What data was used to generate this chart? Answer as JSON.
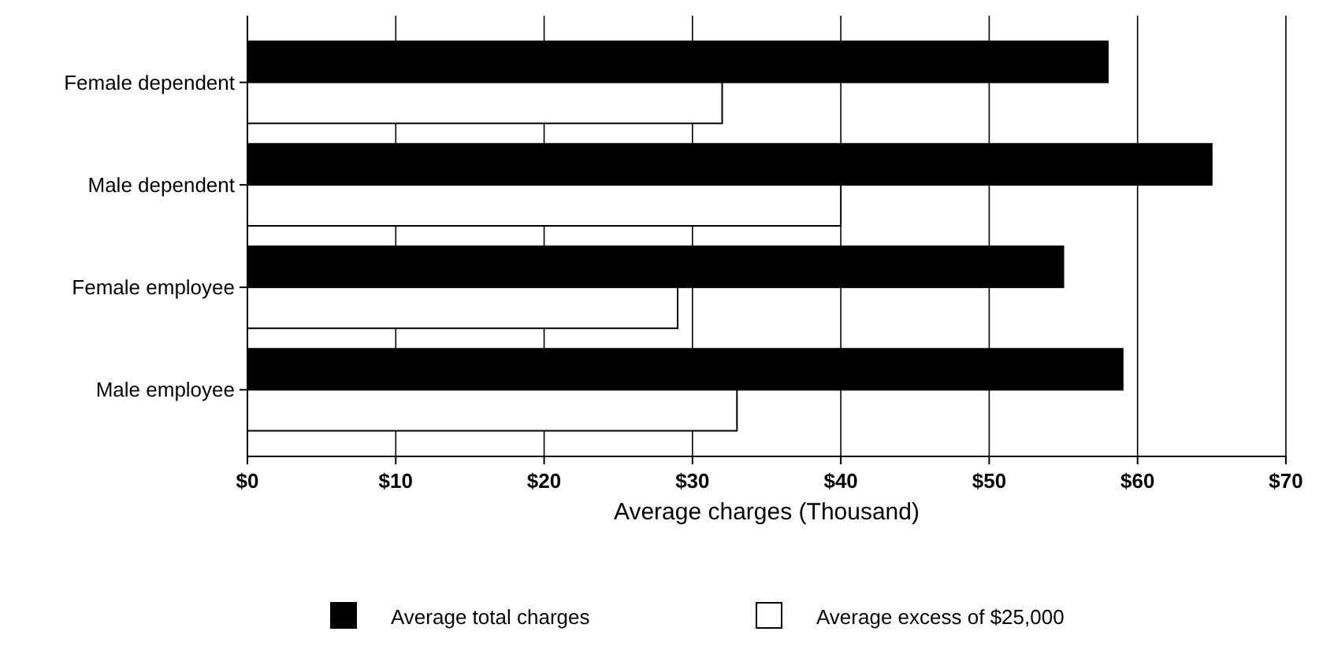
{
  "chart_data": {
    "type": "bar",
    "orientation": "horizontal",
    "xlabel": "Average charges (Thousand)",
    "categories": [
      "Female dependent",
      "Male dependent",
      "Female employee",
      "Male employee"
    ],
    "series": [
      {
        "name": "Average total charges",
        "color": "#000000",
        "values": [
          58,
          65,
          55,
          59
        ]
      },
      {
        "name": "Average excess of $25,000",
        "color": "#ffffff",
        "values": [
          32,
          40,
          29,
          33
        ]
      }
    ],
    "xlim": [
      0,
      70
    ],
    "xticks": [
      {
        "value": 0,
        "label": "$0"
      },
      {
        "value": 10,
        "label": "$10"
      },
      {
        "value": 20,
        "label": "$20"
      },
      {
        "value": 30,
        "label": "$30"
      },
      {
        "value": 40,
        "label": "$40"
      },
      {
        "value": 50,
        "label": "$50"
      },
      {
        "value": 60,
        "label": "$60"
      },
      {
        "value": 70,
        "label": "$70"
      }
    ],
    "grid": "x",
    "legend": "bottom"
  }
}
